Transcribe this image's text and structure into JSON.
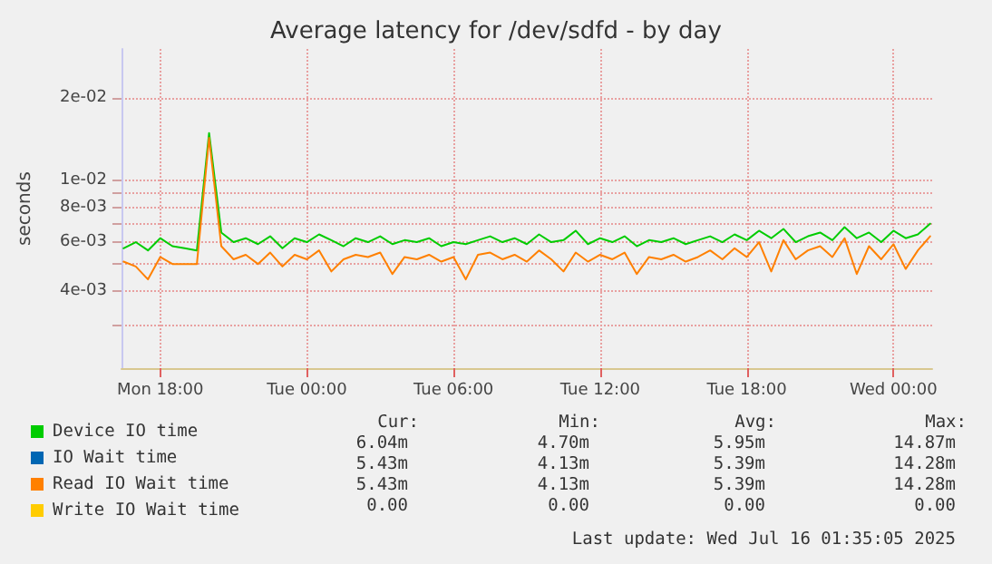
{
  "chart_data": {
    "type": "line",
    "title": "Average latency for /dev/sdfd - by day",
    "ylabel": "seconds",
    "log": "y",
    "grid": true,
    "legend": "bottom",
    "marker": "none",
    "line_style": "solid",
    "x": [
      "2025-07-14T16:30",
      "2025-07-14T17:00",
      "2025-07-14T17:30",
      "2025-07-14T18:00",
      "2025-07-14T18:30",
      "2025-07-14T19:00",
      "2025-07-14T19:30",
      "2025-07-14T20:00",
      "2025-07-14T20:30",
      "2025-07-14T21:00",
      "2025-07-14T21:30",
      "2025-07-14T22:00",
      "2025-07-14T22:30",
      "2025-07-14T23:00",
      "2025-07-14T23:30",
      "2025-07-15T00:00",
      "2025-07-15T00:30",
      "2025-07-15T01:00",
      "2025-07-15T01:30",
      "2025-07-15T02:00",
      "2025-07-15T02:30",
      "2025-07-15T03:00",
      "2025-07-15T03:30",
      "2025-07-15T04:00",
      "2025-07-15T04:30",
      "2025-07-15T05:00",
      "2025-07-15T05:30",
      "2025-07-15T06:00",
      "2025-07-15T06:30",
      "2025-07-15T07:00",
      "2025-07-15T07:30",
      "2025-07-15T08:00",
      "2025-07-15T08:30",
      "2025-07-15T09:00",
      "2025-07-15T09:30",
      "2025-07-15T10:00",
      "2025-07-15T10:30",
      "2025-07-15T11:00",
      "2025-07-15T11:30",
      "2025-07-15T12:00",
      "2025-07-15T12:30",
      "2025-07-15T13:00",
      "2025-07-15T13:30",
      "2025-07-15T14:00",
      "2025-07-15T14:30",
      "2025-07-15T15:00",
      "2025-07-15T15:30",
      "2025-07-15T16:00",
      "2025-07-15T16:30",
      "2025-07-15T17:00",
      "2025-07-15T17:30",
      "2025-07-15T18:00",
      "2025-07-15T18:30",
      "2025-07-15T19:00",
      "2025-07-15T19:30",
      "2025-07-15T20:00",
      "2025-07-15T20:30",
      "2025-07-15T21:00",
      "2025-07-15T21:30",
      "2025-07-15T22:00",
      "2025-07-15T22:30",
      "2025-07-15T23:00",
      "2025-07-15T23:30",
      "2025-07-16T00:00",
      "2025-07-16T00:30",
      "2025-07-16T01:00",
      "2025-07-16T01:30"
    ],
    "xlim": [
      "2025-07-14T16:25",
      "2025-07-16T01:35"
    ],
    "xticks": [
      {
        "value": "2025-07-14T18:00",
        "label": "Mon 18:00"
      },
      {
        "value": "2025-07-15T00:00",
        "label": "Tue 00:00"
      },
      {
        "value": "2025-07-15T06:00",
        "label": "Tue 06:00"
      },
      {
        "value": "2025-07-15T12:00",
        "label": "Tue 12:00"
      },
      {
        "value": "2025-07-15T18:00",
        "label": "Tue 18:00"
      },
      {
        "value": "2025-07-16T00:00",
        "label": "Wed 00:00"
      }
    ],
    "ylim": [
      0.0021,
      0.03
    ],
    "yticks": [
      {
        "value": 0.003,
        "label": null
      },
      {
        "value": 0.004,
        "label": "4e-03"
      },
      {
        "value": 0.005,
        "label": null
      },
      {
        "value": 0.006,
        "label": "6e-03"
      },
      {
        "value": 0.007,
        "label": null
      },
      {
        "value": 0.008,
        "label": "8e-03"
      },
      {
        "value": 0.009,
        "label": null
      },
      {
        "value": 0.01,
        "label": "1e-02"
      },
      {
        "value": 0.02,
        "label": "2e-02"
      }
    ],
    "series": [
      {
        "name": "Device IO time",
        "color": "#00cc00",
        "values": [
          0.0057,
          0.006,
          0.0056,
          0.0062,
          0.0058,
          0.0057,
          0.0056,
          0.0149,
          0.0065,
          0.006,
          0.0062,
          0.0059,
          0.0063,
          0.0057,
          0.0062,
          0.006,
          0.0064,
          0.0061,
          0.0058,
          0.0062,
          0.006,
          0.0063,
          0.0059,
          0.0061,
          0.006,
          0.0062,
          0.0058,
          0.006,
          0.0059,
          0.0061,
          0.0063,
          0.006,
          0.0062,
          0.0059,
          0.0064,
          0.006,
          0.0061,
          0.0066,
          0.0059,
          0.0062,
          0.006,
          0.0063,
          0.0058,
          0.0061,
          0.006,
          0.0062,
          0.0059,
          0.0061,
          0.0063,
          0.006,
          0.0064,
          0.0061,
          0.0066,
          0.0062,
          0.0067,
          0.006,
          0.0063,
          0.0065,
          0.0061,
          0.0068,
          0.0062,
          0.0065,
          0.006,
          0.0066,
          0.0062,
          0.0064,
          0.007
        ]
      },
      {
        "name": "IO Wait time",
        "color": "#0066b3",
        "values": [
          null,
          null,
          null,
          null,
          null,
          null,
          null,
          null,
          null,
          null,
          null,
          null,
          null,
          null,
          null,
          null,
          null,
          null,
          null,
          null,
          null,
          null,
          null,
          null,
          null,
          null,
          null,
          null,
          null,
          null,
          null,
          null,
          null,
          null,
          null,
          null,
          null,
          null,
          null,
          null,
          null,
          null,
          null,
          null,
          null,
          null,
          null,
          null,
          null,
          null,
          null,
          null,
          null,
          null,
          null,
          null,
          null,
          null,
          null,
          null,
          null,
          null,
          null,
          null,
          null,
          null,
          null
        ]
      },
      {
        "name": "Read IO Wait time",
        "color": "#ff8000",
        "values": [
          0.0051,
          0.0049,
          0.0044,
          0.0053,
          0.005,
          0.005,
          0.005,
          0.0143,
          0.0058,
          0.0052,
          0.0054,
          0.005,
          0.0055,
          0.0049,
          0.0054,
          0.0052,
          0.0056,
          0.0047,
          0.0052,
          0.0054,
          0.0053,
          0.0055,
          0.0046,
          0.0053,
          0.0052,
          0.0054,
          0.0051,
          0.0053,
          0.0044,
          0.0054,
          0.0055,
          0.0052,
          0.0054,
          0.0051,
          0.0056,
          0.0052,
          0.0047,
          0.0055,
          0.0051,
          0.0054,
          0.0052,
          0.0055,
          0.0046,
          0.0053,
          0.0052,
          0.0054,
          0.0051,
          0.0053,
          0.0056,
          0.0052,
          0.0057,
          0.0053,
          0.006,
          0.0047,
          0.0061,
          0.0052,
          0.0056,
          0.0058,
          0.0053,
          0.0062,
          0.0046,
          0.0058,
          0.0052,
          0.0059,
          0.0048,
          0.0056,
          0.0063
        ]
      },
      {
        "name": "Write IO Wait time",
        "color": "#ffcc00",
        "values": [
          null,
          null,
          null,
          null,
          null,
          null,
          null,
          null,
          null,
          null,
          null,
          null,
          null,
          null,
          null,
          null,
          null,
          null,
          null,
          null,
          null,
          null,
          null,
          null,
          null,
          null,
          null,
          null,
          null,
          null,
          null,
          null,
          null,
          null,
          null,
          null,
          null,
          null,
          null,
          null,
          null,
          null,
          null,
          null,
          null,
          null,
          null,
          null,
          null,
          null,
          null,
          null,
          null,
          null,
          null,
          null,
          null,
          null,
          null,
          null,
          null,
          null,
          null,
          null,
          null,
          null,
          null
        ]
      }
    ],
    "annotations": [
      "Cur:",
      "Min:",
      "Avg:",
      "Max:",
      "6.04m",
      "4.70m",
      "5.95m",
      "14.87m",
      "5.43m",
      "4.13m",
      "5.39m",
      "14.28m",
      "5.43m",
      "4.13m",
      "5.39m",
      "14.28m",
      "0.00",
      "0.00",
      "0.00",
      "0.00",
      "Last update: Wed Jul 16 01:35:05 2025"
    ]
  }
}
